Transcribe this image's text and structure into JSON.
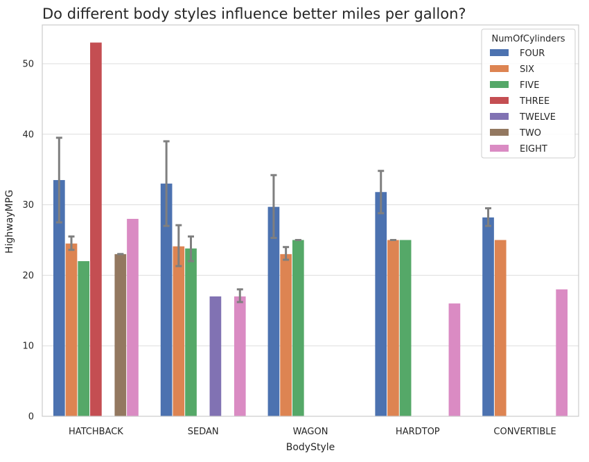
{
  "chart_data": {
    "type": "bar",
    "title": "Do different body styles influence better miles per gallon?",
    "xlabel": "BodyStyle",
    "ylabel": "HighwayMPG",
    "ylim": [
      0,
      55.5
    ],
    "yticks": [
      0,
      10,
      20,
      30,
      40,
      50
    ],
    "grid": true,
    "legend_title": "NumOfCylinders",
    "legend_position": "top-right",
    "categories": [
      "HATCHBACK",
      "SEDAN",
      "WAGON",
      "HARDTOP",
      "CONVERTIBLE"
    ],
    "series": [
      {
        "name": "FOUR",
        "color": "#4c72b0",
        "values": [
          33.5,
          33.0,
          29.7,
          31.8,
          28.2
        ],
        "err_low": [
          27.5,
          27.0,
          25.3,
          28.8,
          27.0
        ],
        "err_high": [
          39.5,
          39.0,
          34.2,
          34.8,
          29.5
        ]
      },
      {
        "name": "SIX",
        "color": "#dd8452",
        "values": [
          24.5,
          24.1,
          23.0,
          25.0,
          25.0
        ],
        "err_low": [
          23.6,
          21.3,
          22.2,
          25.0,
          null
        ],
        "err_high": [
          25.5,
          27.1,
          24.0,
          25.0,
          null
        ]
      },
      {
        "name": "FIVE",
        "color": "#55a868",
        "values": [
          22.0,
          23.8,
          25.0,
          25.0,
          null
        ],
        "err_low": [
          null,
          22.0,
          25.0,
          null,
          null
        ],
        "err_high": [
          null,
          25.5,
          25.0,
          null,
          null
        ]
      },
      {
        "name": "THREE",
        "color": "#c44e52",
        "values": [
          53.0,
          null,
          null,
          null,
          null
        ]
      },
      {
        "name": "TWELVE",
        "color": "#8172b3",
        "values": [
          null,
          17.0,
          null,
          null,
          null
        ]
      },
      {
        "name": "TWO",
        "color": "#937860",
        "values": [
          23.0,
          null,
          null,
          null,
          null
        ],
        "err_low": [
          23.0,
          null,
          null,
          null,
          null
        ],
        "err_high": [
          23.0,
          null,
          null,
          null,
          null
        ]
      },
      {
        "name": "EIGHT",
        "color": "#da8bc3",
        "values": [
          28.0,
          17.0,
          null,
          16.0,
          18.0
        ],
        "err_low": [
          null,
          16.2,
          null,
          null,
          null
        ],
        "err_high": [
          null,
          18.0,
          null,
          null,
          null
        ]
      }
    ]
  }
}
